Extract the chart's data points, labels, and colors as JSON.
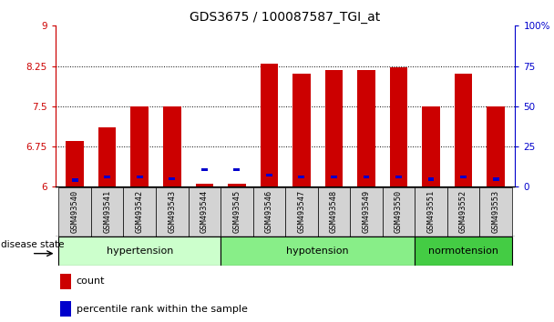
{
  "title": "GDS3675 / 100087587_TGI_at",
  "samples": [
    "GSM493540",
    "GSM493541",
    "GSM493542",
    "GSM493543",
    "GSM493544",
    "GSM493545",
    "GSM493546",
    "GSM493547",
    "GSM493548",
    "GSM493549",
    "GSM493550",
    "GSM493551",
    "GSM493552",
    "GSM493553"
  ],
  "count_values": [
    6.85,
    7.1,
    7.5,
    7.5,
    6.05,
    6.05,
    8.3,
    8.1,
    8.18,
    8.18,
    8.22,
    7.5,
    8.1,
    7.5
  ],
  "percentile_values": [
    6.12,
    6.18,
    6.18,
    6.15,
    6.32,
    6.32,
    6.22,
    6.18,
    6.18,
    6.18,
    6.18,
    6.14,
    6.18,
    6.14
  ],
  "y_min": 6.0,
  "y_max": 9.0,
  "y_ticks": [
    6.0,
    6.75,
    7.5,
    8.25,
    9.0
  ],
  "y_tick_labels": [
    "6",
    "6.75",
    "7.5",
    "8.25",
    "9"
  ],
  "y2_ticks": [
    0,
    25,
    50,
    75,
    100
  ],
  "y2_tick_labels": [
    "0",
    "25",
    "50",
    "75",
    "100%"
  ],
  "disease_groups": [
    {
      "label": "hypertension",
      "start": 0,
      "end": 4,
      "color": "#ccffcc"
    },
    {
      "label": "hypotension",
      "start": 5,
      "end": 10,
      "color": "#88ee88"
    },
    {
      "label": "normotension",
      "start": 11,
      "end": 13,
      "color": "#44cc44"
    }
  ],
  "bar_color": "#cc0000",
  "percentile_color": "#0000cc",
  "bar_width": 0.55,
  "title_fontsize": 10,
  "background_color": "#ffffff",
  "left_tick_color": "#cc0000",
  "right_tick_color": "#0000cc",
  "disease_label": "disease state",
  "gridline_ticks": [
    6.75,
    7.5,
    8.25
  ]
}
